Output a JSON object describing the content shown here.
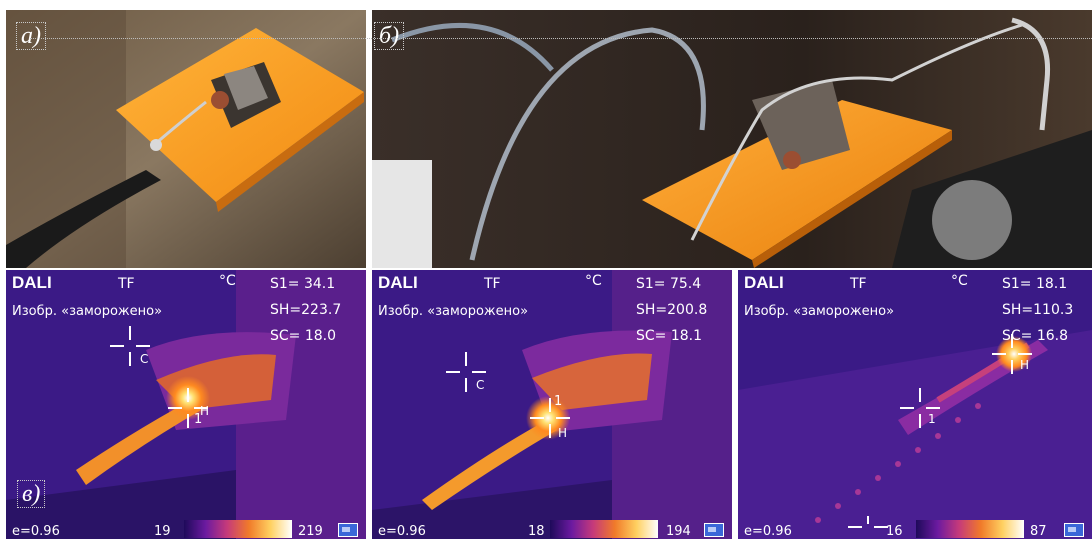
{
  "panels": {
    "a": {
      "label": "а)"
    },
    "b": {
      "label": "б)"
    },
    "c": {
      "label": "в)"
    }
  },
  "thermal_images": [
    {
      "brand": "DALI",
      "mode": "TF",
      "unit": "°C",
      "status": "Изобр. «заморожено»",
      "s1": "S1= 34.1",
      "sh": "SH=223.7",
      "sc": "SC= 18.0",
      "emissivity": "e=0.96",
      "scale_min": "19",
      "scale_max": "219",
      "markers": [
        "C",
        "H",
        "1"
      ]
    },
    {
      "brand": "DALI",
      "mode": "TF",
      "unit": "°C",
      "status": "Изобр. «заморожено»",
      "s1": "S1= 75.4",
      "sh": "SH=200.8",
      "sc": "SC= 18.1",
      "emissivity": "e=0.96",
      "scale_min": "18",
      "scale_max": "194",
      "markers": [
        "C",
        "H",
        "1"
      ]
    },
    {
      "brand": "DALI",
      "mode": "TF",
      "unit": "°C",
      "status": "Изобр. «заморожено»",
      "s1": "S1= 18.1",
      "sh": "SH=110.3",
      "sc": "SC= 16.8",
      "emissivity": "e=0.96",
      "scale_min": "16",
      "scale_max": "87",
      "markers": [
        "H",
        "1"
      ]
    }
  ]
}
